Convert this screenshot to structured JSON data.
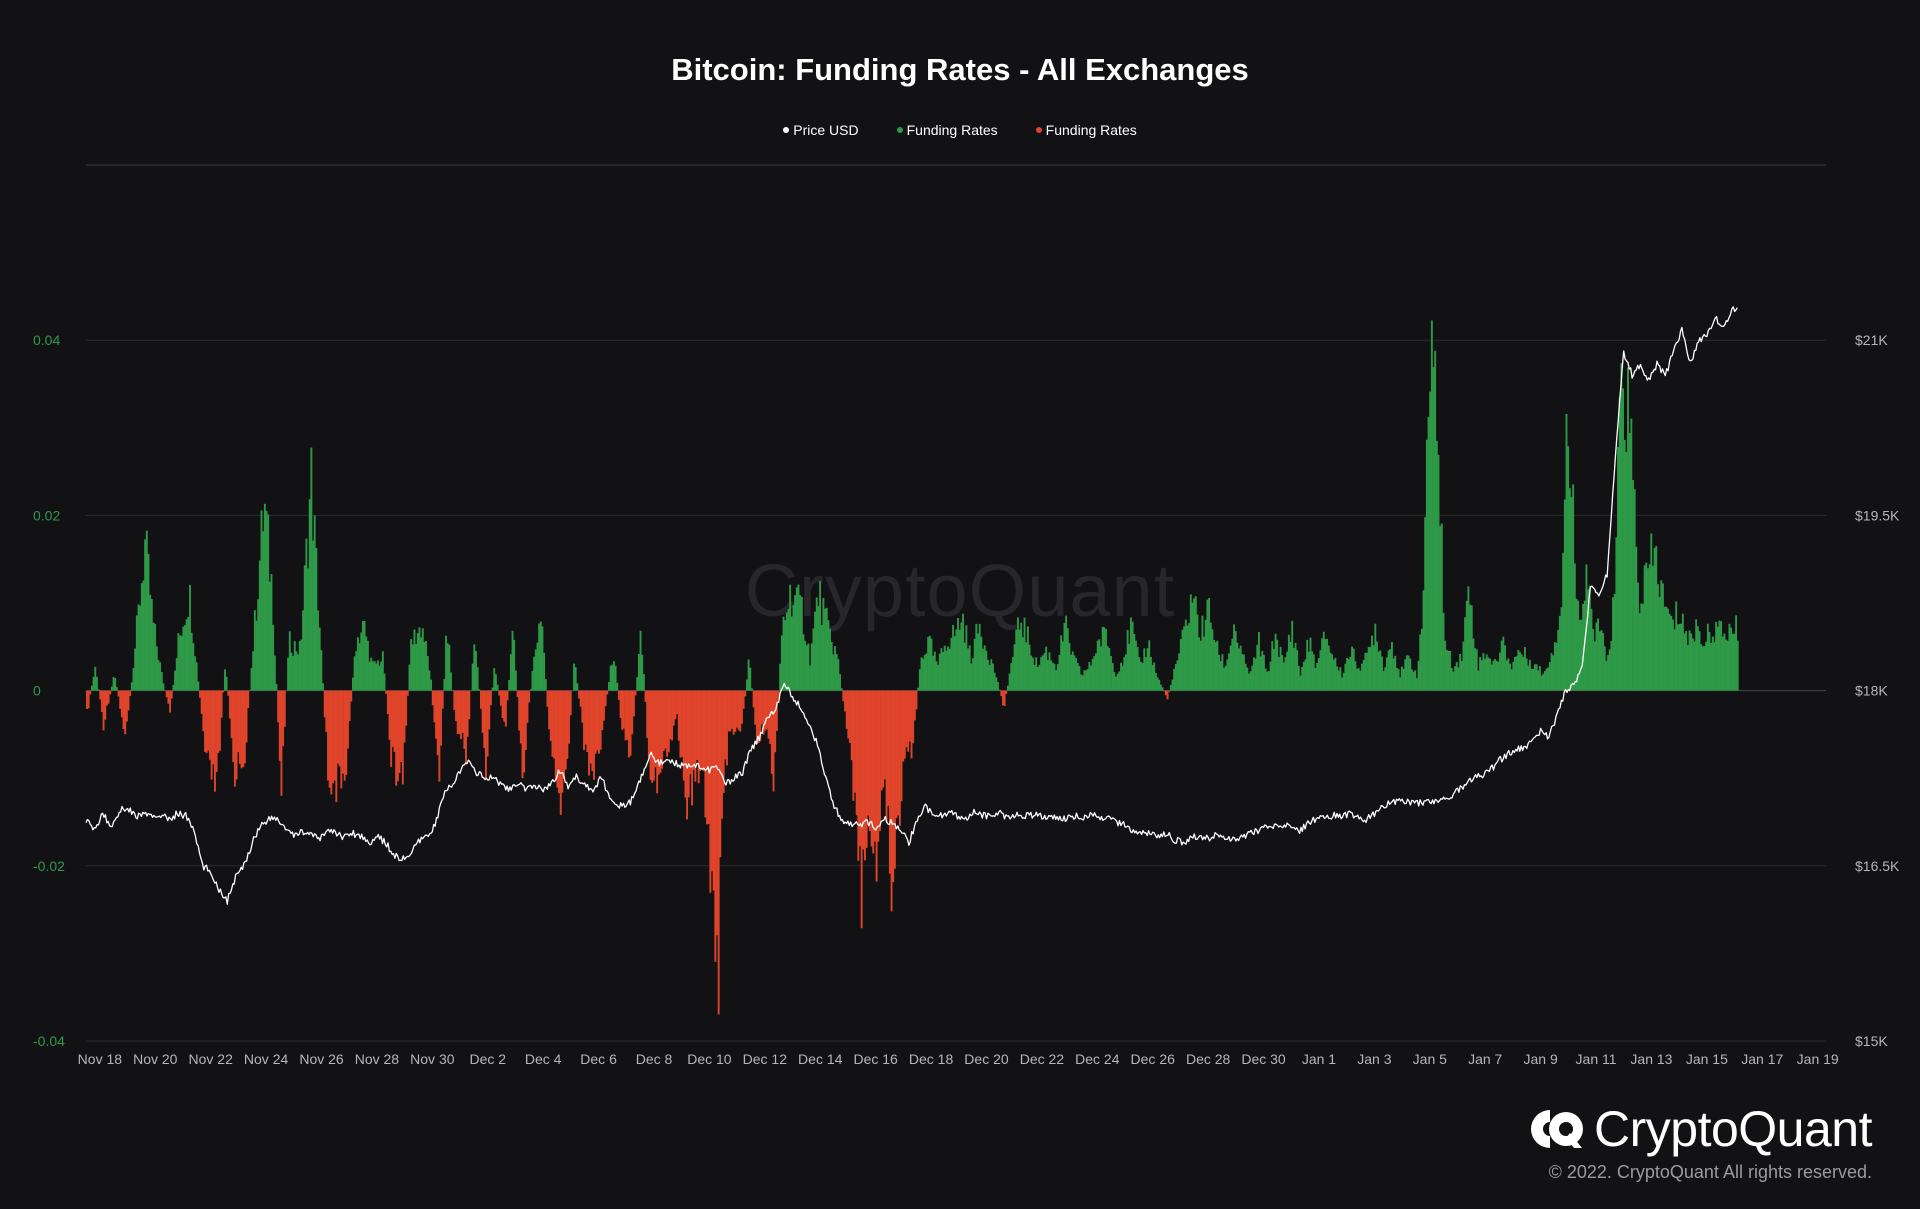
{
  "chart_data": {
    "type": "bar",
    "title": "Bitcoin: Funding Rates - All Exchanges",
    "legend": [
      {
        "label": "Price USD",
        "color": "#ffffff"
      },
      {
        "label": "Funding Rates",
        "color": "#2e9a48"
      },
      {
        "label": "Funding Rates",
        "color": "#e0452b"
      }
    ],
    "left_axis": {
      "ticks": [
        "0.04",
        "0.02",
        "0",
        "-0.02",
        "-0.04"
      ],
      "range": [
        -0.04,
        0.06
      ]
    },
    "right_axis": {
      "ticks": [
        "$21K",
        "$19.5K",
        "$18K",
        "$16.5K",
        "$15K"
      ],
      "range": [
        15000,
        22500
      ]
    },
    "x_ticks": [
      "Nov 18",
      "Nov 20",
      "Nov 22",
      "Nov 24",
      "Nov 26",
      "Nov 28",
      "Nov 30",
      "Dec 2",
      "Dec 4",
      "Dec 6",
      "Dec 8",
      "Dec 10",
      "Dec 12",
      "Dec 14",
      "Dec 16",
      "Dec 18",
      "Dec 20",
      "Dec 22",
      "Dec 24",
      "Dec 26",
      "Dec 28",
      "Dec 30",
      "Jan 1",
      "Jan 3",
      "Jan 5",
      "Jan 7",
      "Jan 9",
      "Jan 11",
      "Jan 13",
      "Jan 15",
      "Jan 17",
      "Jan 19"
    ],
    "x_day_range": [
      0,
      62.8
    ],
    "funding_anchors": [
      [
        0,
        -0.003
      ],
      [
        0.3,
        0.003
      ],
      [
        0.6,
        -0.004
      ],
      [
        1.0,
        0.002
      ],
      [
        1.4,
        -0.006
      ],
      [
        1.7,
        0.004
      ],
      [
        2.1,
        0.018
      ],
      [
        2.4,
        0.008
      ],
      [
        2.7,
        0.002
      ],
      [
        3.0,
        -0.003
      ],
      [
        3.3,
        0.006
      ],
      [
        3.7,
        0.012
      ],
      [
        4.0,
        0.002
      ],
      [
        4.3,
        -0.009
      ],
      [
        4.7,
        -0.012
      ],
      [
        5.0,
        0.004
      ],
      [
        5.3,
        -0.01
      ],
      [
        5.7,
        -0.008
      ],
      [
        6.1,
        0.01
      ],
      [
        6.4,
        0.023
      ],
      [
        6.7,
        0.012
      ],
      [
        7.0,
        -0.012
      ],
      [
        7.3,
        0.006
      ],
      [
        7.7,
        0.005
      ],
      [
        8.1,
        0.026
      ],
      [
        8.4,
        0.008
      ],
      [
        8.7,
        -0.01
      ],
      [
        9.1,
        -0.012
      ],
      [
        9.4,
        -0.008
      ],
      [
        9.7,
        0.006
      ],
      [
        10.0,
        0.008
      ],
      [
        10.3,
        0.003
      ],
      [
        10.7,
        0.004
      ],
      [
        11.0,
        -0.009
      ],
      [
        11.4,
        -0.011
      ],
      [
        11.7,
        0.006
      ],
      [
        12.1,
        0.008
      ],
      [
        12.4,
        0.002
      ],
      [
        12.7,
        -0.011
      ],
      [
        13.0,
        0.008
      ],
      [
        13.3,
        -0.004
      ],
      [
        13.7,
        -0.008
      ],
      [
        14.0,
        0.007
      ],
      [
        14.4,
        -0.01
      ],
      [
        14.7,
        0.003
      ],
      [
        15.1,
        -0.005
      ],
      [
        15.4,
        0.008
      ],
      [
        15.7,
        -0.011
      ],
      [
        16.1,
        0.003
      ],
      [
        16.4,
        0.01
      ],
      [
        16.7,
        -0.006
      ],
      [
        17.0,
        -0.014
      ],
      [
        17.3,
        -0.011
      ],
      [
        17.6,
        0.004
      ],
      [
        18.0,
        -0.008
      ],
      [
        18.3,
        -0.01
      ],
      [
        18.6,
        -0.005
      ],
      [
        19.0,
        0.005
      ],
      [
        19.3,
        -0.004
      ],
      [
        19.6,
        -0.008
      ],
      [
        20.0,
        0.007
      ],
      [
        20.3,
        -0.009
      ],
      [
        20.6,
        -0.011
      ],
      [
        21.0,
        -0.007
      ],
      [
        21.3,
        -0.003
      ],
      [
        21.6,
        -0.014
      ],
      [
        21.9,
        -0.012
      ],
      [
        22.2,
        -0.008
      ],
      [
        22.6,
        -0.025
      ],
      [
        22.8,
        -0.033
      ],
      [
        23.0,
        -0.012
      ],
      [
        23.2,
        -0.004
      ],
      [
        23.6,
        -0.006
      ],
      [
        23.9,
        0.004
      ],
      [
        24.2,
        -0.007
      ],
      [
        24.5,
        -0.004
      ],
      [
        24.8,
        -0.011
      ],
      [
        25.1,
        0.008
      ],
      [
        25.4,
        0.012
      ],
      [
        25.8,
        0.01
      ],
      [
        26.1,
        0.004
      ],
      [
        26.4,
        0.012
      ],
      [
        26.8,
        0.007
      ],
      [
        27.1,
        0.004
      ],
      [
        27.4,
        -0.004
      ],
      [
        27.8,
        -0.015
      ],
      [
        28.0,
        -0.027
      ],
      [
        28.2,
        -0.014
      ],
      [
        28.5,
        -0.02
      ],
      [
        28.8,
        -0.01
      ],
      [
        29.0,
        -0.024
      ],
      [
        29.3,
        -0.015
      ],
      [
        29.6,
        -0.006
      ],
      [
        29.8,
        -0.007
      ],
      [
        30.1,
        0.004
      ],
      [
        30.4,
        0.006
      ],
      [
        30.7,
        0.003
      ],
      [
        31.0,
        0.006
      ],
      [
        31.3,
        0.007
      ],
      [
        31.6,
        0.009
      ],
      [
        31.9,
        0.004
      ],
      [
        32.2,
        0.008
      ],
      [
        32.5,
        0.005
      ],
      [
        32.8,
        0.002
      ],
      [
        33.1,
        -0.002
      ],
      [
        33.4,
        0.004
      ],
      [
        33.7,
        0.009
      ],
      [
        34.0,
        0.006
      ],
      [
        34.3,
        0.003
      ],
      [
        34.6,
        0.005
      ],
      [
        35.0,
        0.003
      ],
      [
        35.3,
        0.008
      ],
      [
        35.6,
        0.004
      ],
      [
        35.9,
        0.002
      ],
      [
        36.2,
        0.003
      ],
      [
        36.5,
        0.006
      ],
      [
        36.8,
        0.007
      ],
      [
        37.1,
        0.002
      ],
      [
        37.4,
        0.004
      ],
      [
        37.7,
        0.008
      ],
      [
        38.0,
        0.003
      ],
      [
        38.3,
        0.006
      ],
      [
        38.6,
        0.002
      ],
      [
        39.0,
        -0.001
      ],
      [
        39.3,
        0.003
      ],
      [
        39.6,
        0.007
      ],
      [
        39.9,
        0.012
      ],
      [
        40.2,
        0.007
      ],
      [
        40.5,
        0.01
      ],
      [
        40.8,
        0.005
      ],
      [
        41.1,
        0.003
      ],
      [
        41.4,
        0.008
      ],
      [
        41.7,
        0.004
      ],
      [
        42.0,
        0.002
      ],
      [
        42.3,
        0.006
      ],
      [
        42.6,
        0.002
      ],
      [
        42.9,
        0.007
      ],
      [
        43.2,
        0.003
      ],
      [
        43.5,
        0.008
      ],
      [
        43.8,
        0.002
      ],
      [
        44.1,
        0.006
      ],
      [
        44.4,
        0.003
      ],
      [
        44.7,
        0.007
      ],
      [
        45.0,
        0.004
      ],
      [
        45.3,
        0.002
      ],
      [
        45.6,
        0.005
      ],
      [
        45.9,
        0.003
      ],
      [
        46.2,
        0.004
      ],
      [
        46.5,
        0.008
      ],
      [
        46.8,
        0.003
      ],
      [
        47.1,
        0.006
      ],
      [
        47.4,
        0.002
      ],
      [
        47.7,
        0.004
      ],
      [
        48.0,
        0.002
      ],
      [
        48.2,
        0.008
      ],
      [
        48.4,
        0.036
      ],
      [
        48.6,
        0.038
      ],
      [
        48.8,
        0.03
      ],
      [
        49.0,
        0.006
      ],
      [
        49.3,
        0.003
      ],
      [
        49.6,
        0.004
      ],
      [
        49.9,
        0.013
      ],
      [
        50.2,
        0.003
      ],
      [
        50.5,
        0.005
      ],
      [
        50.8,
        0.003
      ],
      [
        51.1,
        0.006
      ],
      [
        51.4,
        0.003
      ],
      [
        51.7,
        0.005
      ],
      [
        52.0,
        0.004
      ],
      [
        52.3,
        0.003
      ],
      [
        52.6,
        0.002
      ],
      [
        52.9,
        0.005
      ],
      [
        53.2,
        0.01
      ],
      [
        53.4,
        0.032
      ],
      [
        53.6,
        0.024
      ],
      [
        53.8,
        0.01
      ],
      [
        54.0,
        0.012
      ],
      [
        54.2,
        0.015
      ],
      [
        54.4,
        0.006
      ],
      [
        54.6,
        0.008
      ],
      [
        54.8,
        0.005
      ],
      [
        55.0,
        0.004
      ],
      [
        55.2,
        0.018
      ],
      [
        55.4,
        0.04
      ],
      [
        55.6,
        0.035
      ],
      [
        55.8,
        0.026
      ],
      [
        56.0,
        0.011
      ],
      [
        56.3,
        0.014
      ],
      [
        56.6,
        0.017
      ],
      [
        56.9,
        0.011
      ],
      [
        57.2,
        0.008
      ],
      [
        57.5,
        0.01
      ],
      [
        57.8,
        0.006
      ],
      [
        58.1,
        0.008
      ],
      [
        58.4,
        0.006
      ],
      [
        58.7,
        0.008
      ],
      [
        59.0,
        0.007
      ],
      [
        59.3,
        0.0075
      ],
      [
        59.6,
        0.0075
      ]
    ],
    "price_anchors": [
      [
        0,
        16900
      ],
      [
        0.3,
        16800
      ],
      [
        0.6,
        16950
      ],
      [
        0.9,
        16830
      ],
      [
        1.2,
        16970
      ],
      [
        1.5,
        17000
      ],
      [
        1.8,
        16920
      ],
      [
        2.1,
        16950
      ],
      [
        2.4,
        16910
      ],
      [
        2.7,
        16940
      ],
      [
        3.0,
        16890
      ],
      [
        3.3,
        16950
      ],
      [
        3.6,
        16930
      ],
      [
        3.9,
        16800
      ],
      [
        4.2,
        16500
      ],
      [
        4.5,
        16450
      ],
      [
        4.8,
        16300
      ],
      [
        5.1,
        16200
      ],
      [
        5.4,
        16400
      ],
      [
        5.7,
        16500
      ],
      [
        6.0,
        16700
      ],
      [
        6.3,
        16850
      ],
      [
        6.6,
        16900
      ],
      [
        6.9,
        16900
      ],
      [
        7.2,
        16820
      ],
      [
        7.5,
        16750
      ],
      [
        7.8,
        16800
      ],
      [
        8.1,
        16770
      ],
      [
        8.4,
        16720
      ],
      [
        8.7,
        16810
      ],
      [
        9.0,
        16780
      ],
      [
        9.3,
        16750
      ],
      [
        9.6,
        16780
      ],
      [
        9.9,
        16760
      ],
      [
        10.2,
        16700
      ],
      [
        10.5,
        16750
      ],
      [
        10.8,
        16700
      ],
      [
        11.1,
        16600
      ],
      [
        11.4,
        16550
      ],
      [
        11.7,
        16600
      ],
      [
        12.0,
        16700
      ],
      [
        12.3,
        16750
      ],
      [
        12.6,
        16850
      ],
      [
        12.9,
        17100
      ],
      [
        13.2,
        17200
      ],
      [
        13.5,
        17300
      ],
      [
        13.8,
        17400
      ],
      [
        14.1,
        17300
      ],
      [
        14.4,
        17250
      ],
      [
        14.7,
        17250
      ],
      [
        15.0,
        17200
      ],
      [
        15.3,
        17150
      ],
      [
        15.6,
        17200
      ],
      [
        15.9,
        17150
      ],
      [
        16.2,
        17180
      ],
      [
        16.5,
        17160
      ],
      [
        16.8,
        17200
      ],
      [
        17.1,
        17320
      ],
      [
        17.4,
        17180
      ],
      [
        17.7,
        17260
      ],
      [
        18.0,
        17200
      ],
      [
        18.3,
        17150
      ],
      [
        18.6,
        17250
      ],
      [
        18.9,
        17100
      ],
      [
        19.2,
        17020
      ],
      [
        19.5,
        17000
      ],
      [
        19.8,
        17100
      ],
      [
        20.1,
        17300
      ],
      [
        20.4,
        17450
      ],
      [
        20.7,
        17380
      ],
      [
        21.0,
        17420
      ],
      [
        21.3,
        17380
      ],
      [
        21.6,
        17350
      ],
      [
        21.9,
        17380
      ],
      [
        22.2,
        17350
      ],
      [
        22.5,
        17320
      ],
      [
        22.8,
        17330
      ],
      [
        23.1,
        17200
      ],
      [
        23.4,
        17250
      ],
      [
        23.7,
        17300
      ],
      [
        24.0,
        17500
      ],
      [
        24.3,
        17600
      ],
      [
        24.6,
        17780
      ],
      [
        24.9,
        17850
      ],
      [
        25.2,
        18050
      ],
      [
        25.5,
        17950
      ],
      [
        25.8,
        17850
      ],
      [
        26.1,
        17700
      ],
      [
        26.4,
        17550
      ],
      [
        26.7,
        17250
      ],
      [
        27.0,
        17000
      ],
      [
        27.3,
        16900
      ],
      [
        27.6,
        16850
      ],
      [
        27.9,
        16850
      ],
      [
        28.2,
        16870
      ],
      [
        28.5,
        16830
      ],
      [
        28.8,
        16900
      ],
      [
        29.1,
        16860
      ],
      [
        29.4,
        16800
      ],
      [
        29.7,
        16700
      ],
      [
        30.0,
        16900
      ],
      [
        30.3,
        17000
      ],
      [
        30.6,
        16950
      ],
      [
        30.9,
        16930
      ],
      [
        31.2,
        16980
      ],
      [
        31.5,
        16910
      ],
      [
        31.8,
        16920
      ],
      [
        32.1,
        16960
      ],
      [
        32.4,
        16930
      ],
      [
        32.7,
        16920
      ],
      [
        33.0,
        16950
      ],
      [
        33.3,
        16910
      ],
      [
        33.6,
        16940
      ],
      [
        33.9,
        16930
      ],
      [
        34.2,
        16940
      ],
      [
        34.5,
        16920
      ],
      [
        34.8,
        16930
      ],
      [
        35.1,
        16910
      ],
      [
        35.4,
        16900
      ],
      [
        35.7,
        16930
      ],
      [
        36.0,
        16900
      ],
      [
        36.3,
        16940
      ],
      [
        36.6,
        16900
      ],
      [
        36.9,
        16900
      ],
      [
        37.2,
        16870
      ],
      [
        37.5,
        16850
      ],
      [
        37.8,
        16800
      ],
      [
        38.1,
        16780
      ],
      [
        38.4,
        16780
      ],
      [
        38.7,
        16760
      ],
      [
        39.0,
        16780
      ],
      [
        39.3,
        16720
      ],
      [
        39.6,
        16700
      ],
      [
        39.9,
        16740
      ],
      [
        40.2,
        16750
      ],
      [
        40.5,
        16730
      ],
      [
        40.8,
        16760
      ],
      [
        41.1,
        16740
      ],
      [
        41.4,
        16730
      ],
      [
        41.7,
        16750
      ],
      [
        42.0,
        16770
      ],
      [
        42.3,
        16800
      ],
      [
        42.6,
        16830
      ],
      [
        42.9,
        16840
      ],
      [
        43.2,
        16830
      ],
      [
        43.5,
        16850
      ],
      [
        43.8,
        16800
      ],
      [
        44.1,
        16860
      ],
      [
        44.4,
        16900
      ],
      [
        44.7,
        16920
      ],
      [
        45.0,
        16930
      ],
      [
        45.3,
        16920
      ],
      [
        45.6,
        16940
      ],
      [
        45.9,
        16920
      ],
      [
        46.2,
        16900
      ],
      [
        46.5,
        16950
      ],
      [
        46.8,
        17000
      ],
      [
        47.1,
        17050
      ],
      [
        47.4,
        17050
      ],
      [
        47.7,
        17050
      ],
      [
        48.0,
        17030
      ],
      [
        48.3,
        17050
      ],
      [
        48.6,
        17050
      ],
      [
        48.9,
        17070
      ],
      [
        49.2,
        17080
      ],
      [
        49.5,
        17150
      ],
      [
        49.8,
        17200
      ],
      [
        50.1,
        17250
      ],
      [
        50.4,
        17280
      ],
      [
        50.7,
        17320
      ],
      [
        51.0,
        17400
      ],
      [
        51.3,
        17450
      ],
      [
        51.6,
        17500
      ],
      [
        51.9,
        17500
      ],
      [
        52.2,
        17560
      ],
      [
        52.5,
        17650
      ],
      [
        52.8,
        17600
      ],
      [
        53.1,
        17800
      ],
      [
        53.4,
        18000
      ],
      [
        53.7,
        18050
      ],
      [
        54.0,
        18200
      ],
      [
        54.3,
        18900
      ],
      [
        54.6,
        18800
      ],
      [
        54.9,
        19000
      ],
      [
        55.2,
        20000
      ],
      [
        55.5,
        20900
      ],
      [
        55.8,
        20700
      ],
      [
        56.1,
        20800
      ],
      [
        56.4,
        20650
      ],
      [
        56.7,
        20800
      ],
      [
        57.0,
        20700
      ],
      [
        57.3,
        20900
      ],
      [
        57.6,
        21100
      ],
      [
        57.9,
        20800
      ],
      [
        58.2,
        21000
      ],
      [
        58.5,
        21050
      ],
      [
        58.8,
        21200
      ],
      [
        59.1,
        21100
      ],
      [
        59.4,
        21250
      ],
      [
        59.6,
        21300
      ]
    ],
    "grid": true
  },
  "brand": {
    "name": "CryptoQuant",
    "copyright": "© 2022. CryptoQuant All rights reserved.",
    "watermark": "CryptoQuant"
  }
}
